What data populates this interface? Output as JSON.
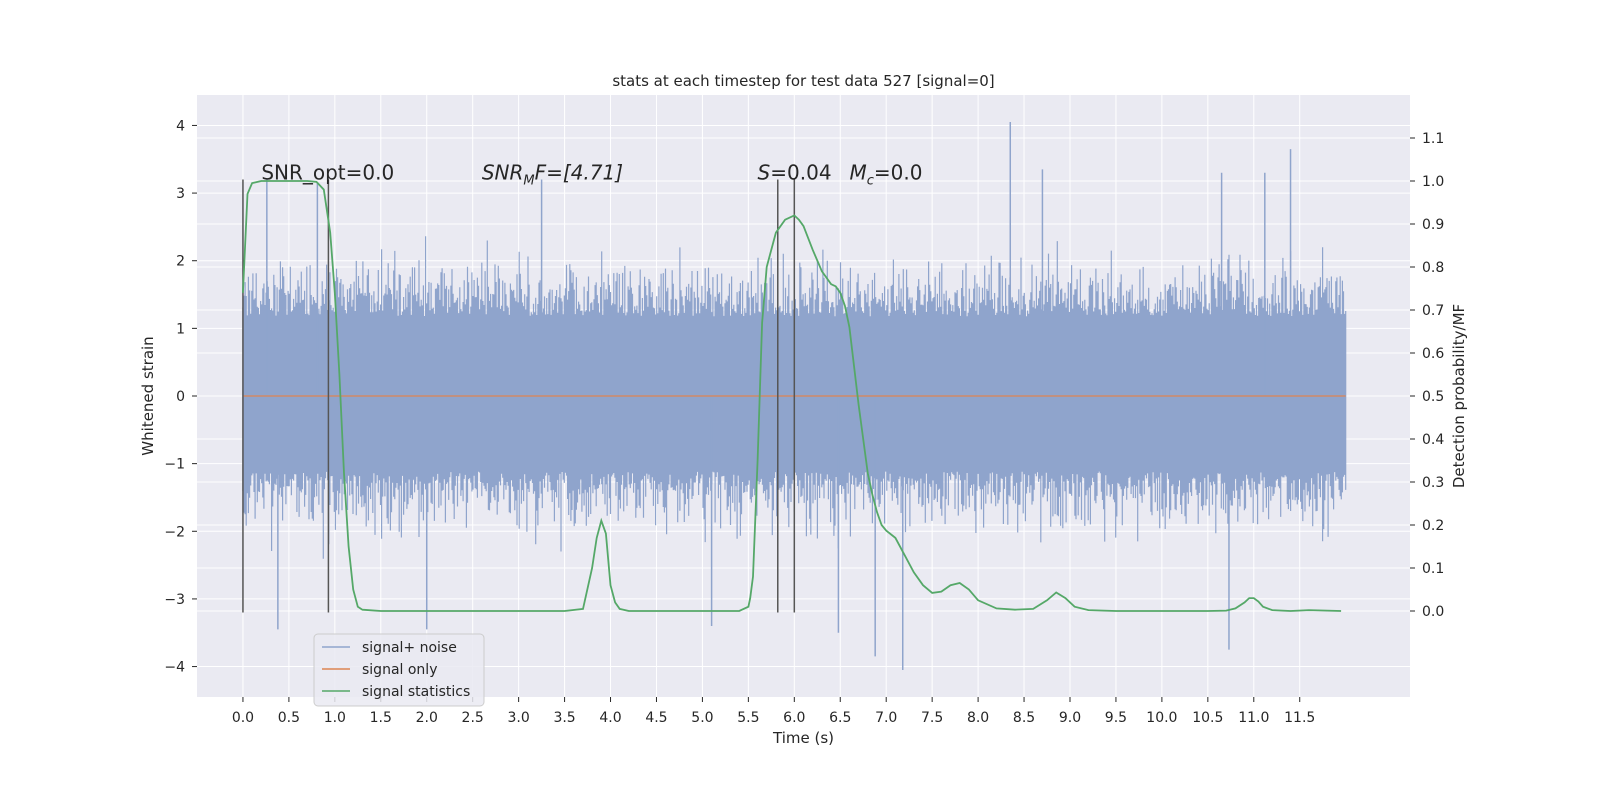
{
  "chart_data": {
    "type": "line",
    "title": "stats at each timestep for test data 527 [signal=0]",
    "xlabel": "Time (s)",
    "ylabel_left": "Whitened strain",
    "ylabel_right": "Detection probability/MF",
    "xlim": [
      -0.5,
      12.7
    ],
    "ylim_left": [
      -4.45,
      4.45
    ],
    "ylim_right": [
      -0.2,
      1.2
    ],
    "x_ticks": [
      "0.0",
      "0.5",
      "1.0",
      "1.5",
      "2.0",
      "2.5",
      "3.0",
      "3.5",
      "4.0",
      "4.5",
      "5.0",
      "5.5",
      "6.0",
      "6.5",
      "7.0",
      "7.5",
      "8.0",
      "8.5",
      "9.0",
      "9.5",
      "10.0",
      "10.5",
      "11.0",
      "11.5"
    ],
    "y_ticks_left": [
      "4",
      "3",
      "2",
      "1",
      "0",
      "−1",
      "−2",
      "−3",
      "−4"
    ],
    "y_ticks_right": [
      "1.1",
      "1.0",
      "0.9",
      "0.8",
      "0.7",
      "0.6",
      "0.5",
      "0.4",
      "0.3",
      "0.2",
      "0.1",
      "0.0"
    ],
    "grid": true,
    "legend_position": "bottom-left",
    "legend": [
      "signal+ noise",
      "signal only",
      "signal statistics"
    ],
    "annotations": {
      "snr_opt": "SNR_opt=0.0",
      "snr_mf_main": "SNR",
      "snr_mf_sub": "M",
      "snr_mf_rest": "F=[4.71]",
      "s_main": "S",
      "s_rest": "=0.04",
      "mc_main": "M",
      "mc_sub": "c",
      "mc_rest": "=0.0"
    },
    "vertical_lines_x": [
      0.0,
      0.93,
      5.82,
      6.0
    ],
    "series": [
      {
        "name": "signal+ noise",
        "color": "#8fa4cc",
        "x_range": [
          0.0,
          12.0
        ],
        "typical_band": [
          -1.8,
          1.9
        ],
        "extremes": {
          "max": 4.05,
          "max_at": 8.35,
          "min": -4.05,
          "min_at": 7.18
        },
        "spikes": [
          {
            "x": 0.26,
            "y": 3.2
          },
          {
            "x": 0.38,
            "y": -3.45
          },
          {
            "x": 0.81,
            "y": 3.15
          },
          {
            "x": 2.0,
            "y": -3.45
          },
          {
            "x": 3.25,
            "y": 3.2
          },
          {
            "x": 5.1,
            "y": -3.4
          },
          {
            "x": 6.48,
            "y": -3.5
          },
          {
            "x": 6.88,
            "y": -3.85
          },
          {
            "x": 7.18,
            "y": -4.05
          },
          {
            "x": 8.35,
            "y": 4.05
          },
          {
            "x": 8.7,
            "y": 3.35
          },
          {
            "x": 10.65,
            "y": 3.3
          },
          {
            "x": 10.73,
            "y": -3.75
          },
          {
            "x": 11.12,
            "y": 3.3
          },
          {
            "x": 11.4,
            "y": 3.65
          }
        ]
      },
      {
        "name": "signal only",
        "color": "#dd8452",
        "x": [
          0.0,
          12.0
        ],
        "y": [
          0.0,
          0.0
        ]
      },
      {
        "name": "signal statistics",
        "color": "#55a868",
        "x": [
          0.0,
          0.05,
          0.1,
          0.2,
          0.3,
          0.5,
          0.7,
          0.8,
          0.88,
          0.95,
          1.0,
          1.05,
          1.1,
          1.15,
          1.2,
          1.25,
          1.3,
          1.5,
          2.0,
          3.0,
          3.5,
          3.7,
          3.8,
          3.85,
          3.9,
          3.95,
          4.0,
          4.05,
          4.1,
          4.2,
          4.5,
          5.0,
          5.4,
          5.5,
          5.52,
          5.55,
          5.6,
          5.65,
          5.7,
          5.8,
          5.9,
          6.0,
          6.05,
          6.1,
          6.2,
          6.3,
          6.4,
          6.45,
          6.5,
          6.55,
          6.6,
          6.65,
          6.7,
          6.75,
          6.8,
          6.85,
          6.9,
          6.95,
          7.0,
          7.1,
          7.2,
          7.3,
          7.4,
          7.5,
          7.6,
          7.7,
          7.8,
          7.9,
          8.0,
          8.2,
          8.4,
          8.6,
          8.75,
          8.85,
          8.95,
          9.05,
          9.2,
          9.5,
          10.0,
          10.5,
          10.7,
          10.8,
          10.9,
          10.95,
          11.0,
          11.05,
          11.1,
          11.2,
          11.4,
          11.6,
          11.8,
          11.95
        ],
        "y": [
          0.74,
          0.97,
          0.995,
          1.0,
          1.0,
          1.0,
          1.0,
          0.998,
          0.98,
          0.88,
          0.74,
          0.55,
          0.32,
          0.15,
          0.05,
          0.01,
          0.003,
          0.0,
          0.0,
          0.0,
          0.0,
          0.005,
          0.1,
          0.17,
          0.21,
          0.18,
          0.06,
          0.02,
          0.005,
          0.0,
          0.0,
          0.0,
          0.0,
          0.01,
          0.03,
          0.08,
          0.35,
          0.67,
          0.8,
          0.88,
          0.91,
          0.92,
          0.91,
          0.895,
          0.84,
          0.79,
          0.76,
          0.755,
          0.74,
          0.71,
          0.66,
          0.57,
          0.48,
          0.4,
          0.32,
          0.27,
          0.23,
          0.2,
          0.187,
          0.17,
          0.13,
          0.09,
          0.06,
          0.042,
          0.045,
          0.06,
          0.065,
          0.05,
          0.025,
          0.006,
          0.003,
          0.005,
          0.025,
          0.043,
          0.03,
          0.01,
          0.002,
          0.0,
          0.0,
          0.0,
          0.001,
          0.006,
          0.02,
          0.03,
          0.03,
          0.022,
          0.01,
          0.002,
          0.0,
          0.002,
          0.001,
          0.0
        ]
      }
    ]
  }
}
